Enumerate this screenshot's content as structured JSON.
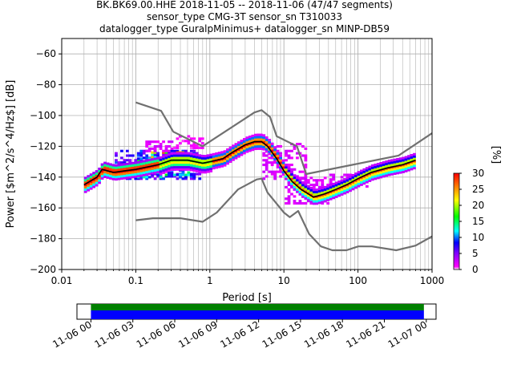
{
  "chart_data": {
    "type": "heatmap",
    "title_lines": [
      "BK.BK69.00.HHE   2018-11-05 -- 2018-11-06  (47/47 segments)",
      "sensor_type CMG-3T sensor_sn T310033",
      "datalogger_type GuralpMinimus+ datalogger_sn MINP-DB59"
    ],
    "xlabel": "Period [s]",
    "ylabel": "Power [$m^2/s^4/Hz$] [dB]",
    "xscale": "log",
    "xlim": [
      0.01,
      1000
    ],
    "ylim": [
      -200,
      -50
    ],
    "x_ticks": [
      {
        "value": 0.01,
        "label": "0.01"
      },
      {
        "value": 0.1,
        "label": "0.1"
      },
      {
        "value": 1,
        "label": "1"
      },
      {
        "value": 10,
        "label": "10"
      },
      {
        "value": 100,
        "label": "100"
      },
      {
        "value": 1000,
        "label": "1000"
      }
    ],
    "y_ticks": [
      {
        "value": -60,
        "label": "−60"
      },
      {
        "value": -80,
        "label": "−80"
      },
      {
        "value": -100,
        "label": "−100"
      },
      {
        "value": -120,
        "label": "−120"
      },
      {
        "value": -140,
        "label": "−140"
      },
      {
        "value": -160,
        "label": "−160"
      },
      {
        "value": -180,
        "label": "−180"
      },
      {
        "value": -200,
        "label": "−200"
      }
    ],
    "grid": true,
    "colorbar": {
      "label": "[%]",
      "range": [
        0,
        30
      ],
      "ticks": [
        {
          "value": 0,
          "label": "0"
        },
        {
          "value": 5,
          "label": "5"
        },
        {
          "value": 10,
          "label": "10"
        },
        {
          "value": 15,
          "label": "15"
        },
        {
          "value": 20,
          "label": "20"
        },
        {
          "value": 25,
          "label": "25"
        },
        {
          "value": 30,
          "label": "30"
        }
      ]
    },
    "colors": {
      "noise_model": "#707070",
      "mode_line": "#000000",
      "grid": "#b0b0b0",
      "coverage_green": "#008000",
      "coverage_blue": "#0000ff"
    },
    "noise_models": [
      {
        "points": [
          [
            0.1,
            -91.5
          ],
          [
            0.22,
            -97
          ],
          [
            0.32,
            -110.5
          ],
          [
            0.8,
            -120
          ],
          [
            4.0,
            -98
          ],
          [
            5.0,
            -96.5
          ],
          [
            6.5,
            -101
          ],
          [
            8.0,
            -113.5
          ],
          [
            15.0,
            -120
          ],
          [
            20.0,
            -138
          ],
          [
            354,
            -126
          ],
          [
            1000,
            -111.5
          ]
        ]
      },
      {
        "points": [
          [
            0.1,
            -168
          ],
          [
            0.17,
            -166.7
          ],
          [
            0.4,
            -166.7
          ],
          [
            0.8,
            -169
          ],
          [
            1.24,
            -163
          ],
          [
            2.4,
            -148
          ],
          [
            4.3,
            -141.5
          ],
          [
            5.0,
            -141
          ],
          [
            6.0,
            -150
          ],
          [
            10.0,
            -163
          ],
          [
            12.0,
            -166
          ],
          [
            15.6,
            -162
          ],
          [
            21.9,
            -177
          ],
          [
            31.6,
            -185
          ],
          [
            45,
            -187.5
          ],
          [
            70,
            -187.5
          ],
          [
            101,
            -185
          ],
          [
            154,
            -185
          ],
          [
            328,
            -187.5
          ],
          [
            600,
            -184.5
          ],
          [
            1000,
            -178.5
          ]
        ]
      }
    ],
    "mode_line": {
      "points": [
        [
          0.02,
          -145
        ],
        [
          0.03,
          -140
        ],
        [
          0.035,
          -135
        ],
        [
          0.05,
          -137
        ],
        [
          0.07,
          -136
        ],
        [
          0.1,
          -135
        ],
        [
          0.2,
          -132
        ],
        [
          0.3,
          -129
        ],
        [
          0.5,
          -129
        ],
        [
          0.8,
          -131
        ],
        [
          1.0,
          -130
        ],
        [
          1.5,
          -128
        ],
        [
          2.0,
          -124
        ],
        [
          3.0,
          -119
        ],
        [
          4.0,
          -117
        ],
        [
          5.0,
          -117
        ],
        [
          6.0,
          -120
        ],
        [
          8.0,
          -128
        ],
        [
          10.0,
          -136
        ],
        [
          13.0,
          -143
        ],
        [
          17.0,
          -148
        ],
        [
          25.0,
          -153
        ],
        [
          35.0,
          -151
        ],
        [
          50.0,
          -148
        ],
        [
          70.0,
          -145
        ],
        [
          100.0,
          -141
        ],
        [
          150.0,
          -137
        ],
        [
          250.0,
          -134
        ],
        [
          400.0,
          -132
        ],
        [
          600.0,
          -129
        ]
      ]
    },
    "density": {
      "core": [
        {
          "from": 0.02,
          "to": 0.2,
          "offsets": [
            [
              -3,
              3
            ],
            [
              -2,
              12
            ],
            [
              -1,
              26
            ],
            [
              0,
              30
            ],
            [
              1,
              28
            ],
            [
              2,
              14
            ],
            [
              3,
              4
            ]
          ]
        },
        {
          "from": 0.2,
          "to": 1.0,
          "offsets": [
            [
              -4,
              2
            ],
            [
              -3,
              6
            ],
            [
              -2,
              14
            ],
            [
              -1,
              22
            ],
            [
              0,
              18
            ],
            [
              1,
              20
            ],
            [
              2,
              8
            ],
            [
              3,
              3
            ]
          ]
        },
        {
          "from": 1.0,
          "to": 10.0,
          "offsets": [
            [
              -3,
              2
            ],
            [
              -2,
              10
            ],
            [
              -1,
              24
            ],
            [
              0,
              30
            ],
            [
              1,
              25
            ],
            [
              2,
              10
            ],
            [
              3,
              2
            ]
          ]
        },
        {
          "from": 10.0,
          "to": 600.0,
          "offsets": [
            [
              -3,
              3
            ],
            [
              -2,
              12
            ],
            [
              -1,
              22
            ],
            [
              0,
              28
            ],
            [
              1,
              20
            ],
            [
              2,
              8
            ],
            [
              3,
              3
            ]
          ]
        }
      ],
      "scatter": [
        {
          "from": 0.05,
          "to": 0.7,
          "lo": -141,
          "hi": -122,
          "value": 7
        },
        {
          "from": 0.1,
          "to": 0.6,
          "lo": -140,
          "hi": -127,
          "value": 12
        },
        {
          "from": 0.15,
          "to": 0.45,
          "lo": -133,
          "hi": -124,
          "value": 20
        },
        {
          "from": 0.12,
          "to": 0.3,
          "lo": -123,
          "hi": -117,
          "value": 2
        },
        {
          "from": 0.3,
          "to": 0.8,
          "lo": -121,
          "hi": -113,
          "value": 1
        },
        {
          "from": 5.0,
          "to": 20.0,
          "lo": -141,
          "hi": -118,
          "value": 2
        },
        {
          "from": 10.0,
          "to": 40.0,
          "lo": -157,
          "hi": -140,
          "value": 2
        },
        {
          "from": 40.0,
          "to": 150.0,
          "lo": -146,
          "hi": -138,
          "value": 2
        }
      ]
    },
    "time_axis": {
      "range_hours": [
        -1,
        24.7
      ],
      "data_range_hours": [
        0,
        23.83
      ],
      "ticks": [
        {
          "hour": 0,
          "label": "11-06 00"
        },
        {
          "hour": 3,
          "label": "11-06 03"
        },
        {
          "hour": 6,
          "label": "11-06 06"
        },
        {
          "hour": 9,
          "label": "11-06 09"
        },
        {
          "hour": 12,
          "label": "11-06 12"
        },
        {
          "hour": 15,
          "label": "11-06 15"
        },
        {
          "hour": 18,
          "label": "11-06 18"
        },
        {
          "hour": 21,
          "label": "11-06 21"
        },
        {
          "hour": 24,
          "label": "11-07 00"
        }
      ]
    }
  }
}
